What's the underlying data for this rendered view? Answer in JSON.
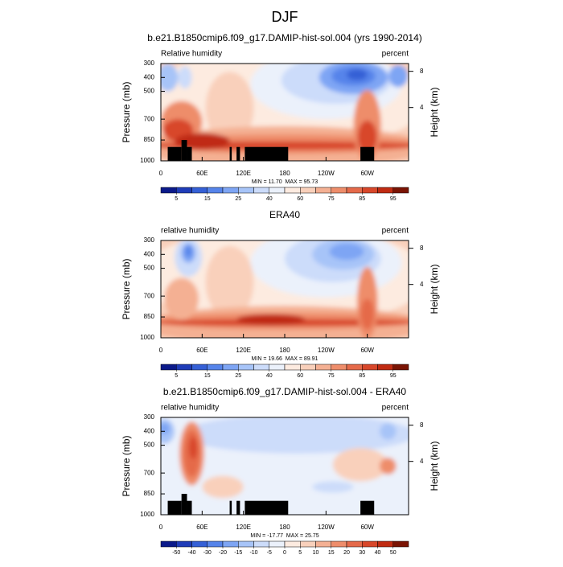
{
  "title": "DJF",
  "chart_data": [
    {
      "type": "contour",
      "title": "b.e21.B1850cmip6.f09_g17.DAMIP-hist-sol.004 (yrs 1990-2014)",
      "left_label": "Relative humidity",
      "right_label": "percent",
      "y_label": "Pressure (mb)",
      "y2_label": "Height (km)",
      "stats": "MIN = 11.70  MAX = 95.73",
      "xlim": [
        0,
        360
      ],
      "xticks": [
        0,
        {
          "value": 60,
          "label": "60E"
        },
        {
          "value": 120,
          "label": "120E"
        },
        180,
        {
          "value": 240,
          "label": "120W"
        },
        {
          "value": 300,
          "label": "60W"
        }
      ],
      "ylim": [
        300,
        1000
      ],
      "yticks": [
        300,
        400,
        500,
        700,
        850,
        1000
      ],
      "y2ticks": [
        4,
        8
      ],
      "colorbar_ticks": [
        5,
        15,
        25,
        40,
        60,
        75,
        85,
        95
      ],
      "colors": [
        "#0b1a8a",
        "#1f3cb8",
        "#3560d6",
        "#5684ea",
        "#7ea5f4",
        "#a7c4f8",
        "#ccdcfa",
        "#ebf1fb",
        "#fdebe0",
        "#f9d0bb",
        "#f4b093",
        "#ee8d6b",
        "#e56a4a",
        "#d8472a",
        "#c02b12",
        "#7a1404"
      ],
      "topography": true
    },
    {
      "type": "contour",
      "title": "ERA40",
      "left_label": "relative humidity",
      "right_label": "percent",
      "y_label": "Pressure (mb)",
      "y2_label": "Height (km)",
      "stats": "MIN = 19.66  MAX = 89.91",
      "xlim": [
        0,
        360
      ],
      "xticks": [
        0,
        {
          "value": 60,
          "label": "60E"
        },
        {
          "value": 120,
          "label": "120E"
        },
        180,
        {
          "value": 240,
          "label": "120W"
        },
        {
          "value": 300,
          "label": "60W"
        }
      ],
      "ylim": [
        300,
        1000
      ],
      "yticks": [
        300,
        400,
        500,
        700,
        850,
        1000
      ],
      "y2ticks": [
        4,
        8
      ],
      "colorbar_ticks": [
        5,
        15,
        25,
        40,
        60,
        75,
        85,
        95
      ],
      "colors": [
        "#0b1a8a",
        "#1f3cb8",
        "#3560d6",
        "#5684ea",
        "#7ea5f4",
        "#a7c4f8",
        "#ccdcfa",
        "#ebf1fb",
        "#fdebe0",
        "#f9d0bb",
        "#f4b093",
        "#ee8d6b",
        "#e56a4a",
        "#d8472a",
        "#c02b12",
        "#7a1404"
      ],
      "topography": false
    },
    {
      "type": "contour",
      "title": "b.e21.B1850cmip6.f09_g17.DAMIP-hist-sol.004 - ERA40",
      "left_label": "relative humidity",
      "right_label": "percent",
      "y_label": "Pressure (mb)",
      "y2_label": "Height (km)",
      "stats": "MIN = -17.77  MAX = 25.75",
      "xlim": [
        0,
        360
      ],
      "xticks": [
        0,
        {
          "value": 60,
          "label": "60E"
        },
        {
          "value": 120,
          "label": "120E"
        },
        180,
        {
          "value": 240,
          "label": "120W"
        },
        {
          "value": 300,
          "label": "60W"
        }
      ],
      "ylim": [
        300,
        1000
      ],
      "yticks": [
        300,
        400,
        500,
        700,
        850,
        1000
      ],
      "y2ticks": [
        4,
        8
      ],
      "colorbar_ticks": [
        -50,
        -40,
        -30,
        -20,
        -15,
        -10,
        -5,
        0,
        5,
        10,
        15,
        20,
        30,
        40,
        50
      ],
      "colors": [
        "#0b1a8a",
        "#1f3cb8",
        "#3560d6",
        "#5684ea",
        "#7ea5f4",
        "#a7c4f8",
        "#ccdcfa",
        "#ebf1fb",
        "#fdebe0",
        "#f9d0bb",
        "#f4b093",
        "#ee8d6b",
        "#e56a4a",
        "#d8472a",
        "#c02b12",
        "#7a1404"
      ],
      "topography": true
    }
  ]
}
